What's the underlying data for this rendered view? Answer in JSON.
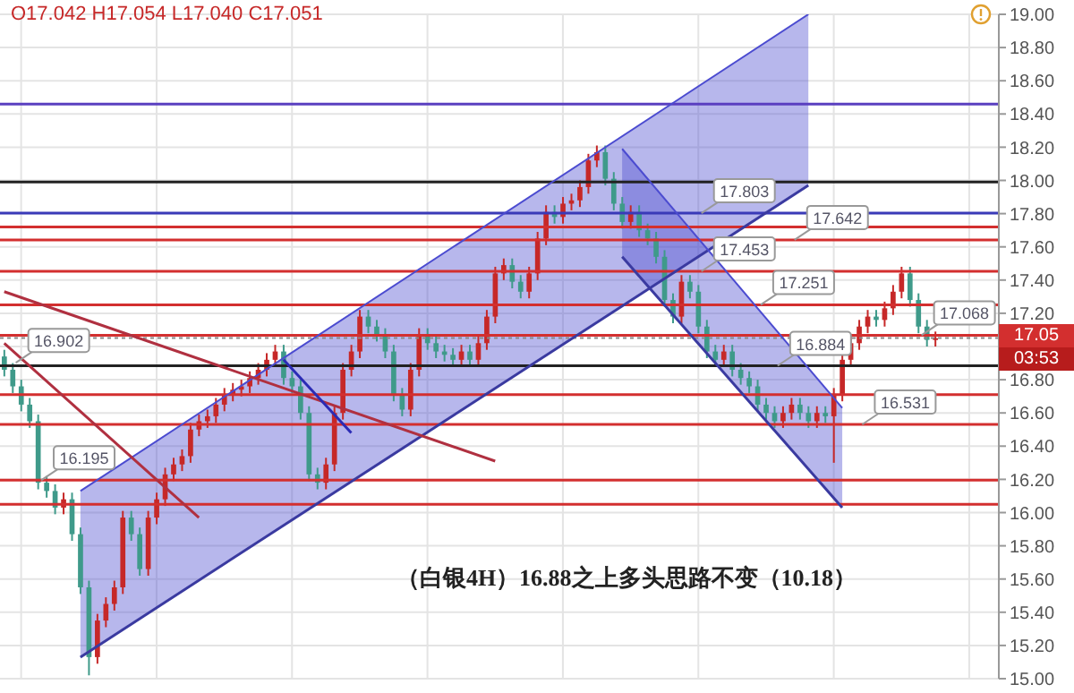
{
  "chart_data": {
    "type": "candlestick",
    "title": "（白银4H）16.88之上多头思路不变（10.18）",
    "categories": [
      null,
      null,
      null,
      null,
      null,
      null,
      null,
      null,
      null,
      null,
      null,
      null,
      null,
      null,
      null,
      null,
      null,
      null,
      null,
      null,
      null,
      null,
      null,
      null,
      null,
      null,
      null,
      null,
      null,
      null,
      null,
      null,
      null,
      null,
      null,
      null,
      null,
      null,
      null,
      null,
      null,
      null,
      null,
      null,
      null,
      null,
      null,
      null,
      null,
      null,
      null,
      null,
      null,
      null,
      null,
      null,
      null,
      null,
      null,
      null,
      null,
      null,
      null,
      null,
      null,
      null,
      null,
      null,
      null,
      null,
      null,
      null,
      null,
      null,
      null,
      null,
      null,
      null,
      null,
      null,
      null,
      null,
      null,
      null,
      null,
      null,
      null,
      null,
      null,
      null,
      null,
      null,
      null,
      null,
      null,
      null,
      null,
      null,
      null,
      null,
      null,
      null,
      null,
      null,
      null,
      null,
      null,
      null,
      null,
      null,
      null,
      null,
      null,
      null,
      null,
      null,
      null,
      null
    ],
    "series": [
      {
        "type": "line",
        "color": "#3a3aa0",
        "values": [
          null,
          null,
          null,
          null,
          null,
          null,
          null,
          null,
          null,
          15.13,
          null,
          null,
          null,
          null,
          null,
          null,
          null,
          null,
          null,
          null,
          null,
          null,
          null,
          null,
          null,
          null,
          null,
          null,
          null,
          null,
          null,
          null,
          null,
          null,
          null,
          null,
          null,
          null,
          null,
          null,
          null,
          null,
          null,
          null,
          null,
          null,
          null,
          null,
          null,
          null,
          null,
          null,
          null,
          null,
          null,
          null,
          null,
          null,
          null,
          null,
          null,
          null,
          null,
          null,
          null,
          null,
          null,
          null,
          null,
          null,
          null,
          null,
          null,
          null,
          null,
          null,
          null,
          null,
          null,
          null,
          null,
          null,
          null,
          null,
          null,
          null,
          null,
          null,
          null,
          null,
          null,
          null,
          null,
          null,
          null,
          17.97,
          null,
          null,
          null,
          null,
          null,
          null,
          null,
          null,
          null,
          null,
          null,
          null,
          null,
          null,
          null,
          null,
          null,
          null,
          null,
          null,
          null,
          null
        ]
      },
      {
        "type": "area",
        "color": "#4b4bd0",
        "values": [
          null,
          null,
          null,
          null,
          null,
          null,
          null,
          null,
          null,
          16.13,
          null,
          null,
          null,
          null,
          null,
          null,
          null,
          null,
          null,
          null,
          null,
          null,
          null,
          null,
          null,
          null,
          null,
          null,
          null,
          null,
          null,
          null,
          null,
          null,
          null,
          null,
          null,
          null,
          null,
          null,
          null,
          null,
          null,
          null,
          null,
          null,
          null,
          null,
          null,
          null,
          null,
          null,
          null,
          null,
          null,
          null,
          null,
          null,
          null,
          null,
          null,
          null,
          null,
          null,
          null,
          null,
          null,
          null,
          null,
          null,
          null,
          null,
          null,
          null,
          null,
          null,
          null,
          null,
          null,
          null,
          null,
          null,
          null,
          null,
          null,
          null,
          null,
          null,
          null,
          null,
          null,
          null,
          null,
          null,
          null,
          19.0,
          null,
          null,
          null,
          null,
          null,
          null,
          null,
          null,
          null,
          null,
          null,
          null,
          null,
          null,
          null,
          null,
          null,
          null,
          null,
          null,
          null,
          null
        ]
      },
      {
        "type": "line",
        "color": "#3a3aa0",
        "values": [
          null,
          null,
          null,
          null,
          null,
          null,
          null,
          null,
          null,
          null,
          null,
          null,
          null,
          null,
          null,
          null,
          null,
          null,
          null,
          null,
          null,
          null,
          null,
          null,
          null,
          null,
          null,
          null,
          null,
          null,
          null,
          null,
          null,
          null,
          null,
          null,
          null,
          null,
          null,
          null,
          null,
          null,
          null,
          null,
          null,
          null,
          null,
          null,
          null,
          null,
          null,
          null,
          null,
          null,
          null,
          null,
          null,
          null,
          null,
          null,
          null,
          null,
          null,
          null,
          null,
          null,
          null,
          null,
          null,
          null,
          null,
          null,
          null,
          17.54,
          null,
          null,
          null,
          null,
          null,
          null,
          null,
          null,
          null,
          null,
          null,
          null,
          null,
          null,
          null,
          null,
          null,
          null,
          null,
          null,
          null,
          null,
          null,
          null,
          null,
          16.03,
          null,
          null,
          null,
          null,
          null,
          null,
          null,
          null,
          null,
          null,
          null,
          null,
          null,
          null,
          null,
          null,
          null,
          null
        ]
      },
      {
        "type": "area",
        "color": "#4b4bd0",
        "values": [
          null,
          null,
          null,
          null,
          null,
          null,
          null,
          null,
          null,
          null,
          null,
          null,
          null,
          null,
          null,
          null,
          null,
          null,
          null,
          null,
          null,
          null,
          null,
          null,
          null,
          null,
          null,
          null,
          null,
          null,
          null,
          null,
          null,
          null,
          null,
          null,
          null,
          null,
          null,
          null,
          null,
          null,
          null,
          null,
          null,
          null,
          null,
          null,
          null,
          null,
          null,
          null,
          null,
          null,
          null,
          null,
          null,
          null,
          null,
          null,
          null,
          null,
          null,
          null,
          null,
          null,
          null,
          null,
          null,
          null,
          null,
          null,
          null,
          18.19,
          null,
          null,
          null,
          null,
          null,
          null,
          null,
          null,
          null,
          null,
          null,
          null,
          null,
          null,
          null,
          null,
          null,
          null,
          null,
          null,
          null,
          null,
          null,
          null,
          null,
          16.63,
          null,
          null,
          null,
          null,
          null,
          null,
          null,
          null,
          null,
          null,
          null,
          null,
          null,
          null,
          null,
          null,
          null,
          null
        ]
      },
      {
        "type": "line",
        "color": "#b03040",
        "values": [
          17.33,
          null,
          null,
          null,
          null,
          null,
          null,
          null,
          null,
          null,
          null,
          null,
          null,
          null,
          null,
          null,
          null,
          null,
          null,
          null,
          null,
          null,
          null,
          null,
          null,
          null,
          null,
          null,
          null,
          null,
          null,
          null,
          null,
          null,
          null,
          null,
          null,
          null,
          null,
          null,
          null,
          null,
          null,
          null,
          null,
          null,
          null,
          null,
          null,
          null,
          null,
          null,
          null,
          null,
          null,
          null,
          null,
          null,
          16.31,
          null,
          null,
          null,
          null,
          null,
          null,
          null,
          null,
          null,
          null,
          null,
          null,
          null,
          null,
          null,
          null,
          null,
          null,
          null,
          null,
          null,
          null,
          null,
          null,
          null,
          null,
          null,
          null,
          null,
          null,
          null,
          null,
          null,
          null,
          null,
          null,
          null,
          null,
          null,
          null,
          null,
          null,
          null,
          null,
          null,
          null,
          null,
          null,
          null,
          null,
          null,
          null,
          null,
          null,
          null,
          null,
          null,
          null,
          null
        ]
      },
      {
        "type": "line",
        "color": "#b03040",
        "values": [
          17.02,
          null,
          null,
          null,
          null,
          null,
          null,
          null,
          null,
          null,
          null,
          null,
          null,
          null,
          null,
          null,
          null,
          null,
          null,
          null,
          null,
          null,
          null,
          15.97,
          null,
          null,
          null,
          null,
          null,
          null,
          null,
          null,
          null,
          null,
          null,
          null,
          null,
          null,
          null,
          null,
          null,
          null,
          null,
          null,
          null,
          null,
          null,
          null,
          null,
          null,
          null,
          null,
          null,
          null,
          null,
          null,
          null,
          null,
          null,
          null,
          null,
          null,
          null,
          null,
          null,
          null,
          null,
          null,
          null,
          null,
          null,
          null,
          null,
          null,
          null,
          null,
          null,
          null,
          null,
          null,
          null,
          null,
          null,
          null,
          null,
          null,
          null,
          null,
          null,
          null,
          null,
          null,
          null,
          null,
          null,
          null,
          null,
          null,
          null,
          null,
          null,
          null,
          null,
          null,
          null,
          null,
          null,
          null,
          null,
          null,
          null,
          null,
          null,
          null,
          null,
          null,
          null,
          null
        ]
      },
      {
        "type": "line",
        "color": "#2b2bb5",
        "values": [
          null,
          null,
          null,
          null,
          null,
          null,
          null,
          null,
          null,
          null,
          null,
          null,
          null,
          null,
          null,
          null,
          null,
          null,
          null,
          null,
          null,
          null,
          null,
          null,
          null,
          null,
          null,
          null,
          null,
          null,
          null,
          null,
          null,
          16.92,
          null,
          null,
          null,
          null,
          null,
          null,
          null,
          16.48,
          null,
          null,
          null,
          null,
          null,
          null,
          null,
          null,
          null,
          null,
          null,
          null,
          null,
          null,
          null,
          null,
          null,
          null,
          null,
          null,
          null,
          null,
          null,
          null,
          null,
          null,
          null,
          null,
          null,
          null,
          null,
          null,
          null,
          null,
          null,
          null,
          null,
          null,
          null,
          null,
          null,
          null,
          null,
          null,
          null,
          null,
          null,
          null,
          null,
          null,
          null,
          null,
          null,
          null,
          null,
          null,
          null,
          null,
          null,
          null,
          null,
          null,
          null,
          null,
          null,
          null,
          null,
          null,
          null,
          null,
          null,
          null,
          null,
          null,
          null,
          null
        ]
      },
      {
        "ohlc": [
          [
            16.94,
            16.98,
            16.82,
            16.86
          ],
          [
            16.86,
            16.9,
            16.72,
            16.76
          ],
          [
            16.76,
            16.8,
            16.61,
            16.65
          ],
          [
            16.65,
            16.69,
            16.51,
            16.55
          ],
          [
            16.55,
            16.59,
            16.14,
            16.18
          ],
          [
            16.18,
            16.22,
            16.09,
            16.13
          ],
          [
            16.13,
            16.17,
            15.99,
            16.03
          ],
          [
            16.03,
            16.12,
            15.99,
            16.08
          ],
          [
            16.08,
            16.12,
            15.83,
            15.87
          ],
          [
            15.87,
            15.91,
            15.51,
            15.55
          ],
          [
            15.55,
            15.59,
            15.02,
            15.13
          ],
          [
            15.13,
            15.39,
            15.09,
            15.35
          ],
          [
            15.35,
            15.49,
            15.31,
            15.45
          ],
          [
            15.45,
            15.59,
            15.41,
            15.55
          ],
          [
            15.55,
            16.01,
            15.51,
            15.97
          ],
          [
            15.97,
            16.01,
            15.83,
            15.87
          ],
          [
            15.87,
            15.91,
            15.62,
            15.66
          ],
          [
            15.66,
            16.01,
            15.62,
            15.97
          ],
          [
            15.97,
            16.12,
            15.93,
            16.08
          ],
          [
            16.08,
            16.27,
            16.04,
            16.23
          ],
          [
            16.23,
            16.33,
            16.19,
            16.29
          ],
          [
            16.29,
            16.38,
            16.25,
            16.34
          ],
          [
            16.34,
            16.54,
            16.3,
            16.5
          ],
          [
            16.5,
            16.59,
            16.46,
            16.55
          ],
          [
            16.55,
            16.62,
            16.51,
            16.58
          ],
          [
            16.58,
            16.69,
            16.54,
            16.65
          ],
          [
            16.65,
            16.75,
            16.61,
            16.71
          ],
          [
            16.71,
            16.78,
            16.67,
            16.74
          ],
          [
            16.74,
            16.8,
            16.7,
            16.76
          ],
          [
            16.76,
            16.85,
            16.72,
            16.81
          ],
          [
            16.81,
            16.9,
            16.77,
            16.86
          ],
          [
            16.86,
            16.96,
            16.82,
            16.92
          ],
          [
            16.92,
            17.01,
            16.88,
            16.97
          ],
          [
            16.97,
            17.01,
            16.77,
            16.81
          ],
          [
            16.81,
            16.85,
            16.72,
            16.76
          ],
          [
            16.76,
            16.8,
            16.56,
            16.6
          ],
          [
            16.6,
            16.64,
            16.19,
            16.23
          ],
          [
            16.23,
            16.27,
            16.14,
            16.18
          ],
          [
            16.18,
            16.33,
            16.14,
            16.29
          ],
          [
            16.29,
            16.64,
            16.25,
            16.6
          ],
          [
            16.6,
            16.9,
            16.56,
            16.86
          ],
          [
            16.86,
            17.01,
            16.82,
            16.97
          ],
          [
            16.97,
            17.22,
            16.93,
            17.18
          ],
          [
            17.18,
            17.22,
            17.08,
            17.12
          ],
          [
            17.12,
            17.16,
            17.03,
            17.07
          ],
          [
            17.07,
            17.11,
            16.93,
            16.97
          ],
          [
            16.97,
            17.01,
            16.67,
            16.71
          ],
          [
            16.71,
            16.75,
            16.58,
            16.62
          ],
          [
            16.62,
            16.9,
            16.58,
            16.86
          ],
          [
            16.86,
            17.11,
            16.82,
            17.07
          ],
          [
            17.07,
            17.11,
            16.98,
            17.02
          ],
          [
            17.02,
            17.06,
            16.93,
            16.97
          ],
          [
            16.97,
            17.01,
            16.91,
            16.95
          ],
          [
            16.95,
            16.99,
            16.88,
            16.92
          ],
          [
            16.92,
            17.01,
            16.88,
            16.97
          ],
          [
            16.97,
            17.01,
            16.88,
            16.92
          ],
          [
            16.92,
            17.06,
            16.88,
            17.02
          ],
          [
            17.02,
            17.22,
            16.98,
            17.18
          ],
          [
            17.18,
            17.48,
            17.14,
            17.44
          ],
          [
            17.44,
            17.53,
            17.4,
            17.49
          ],
          [
            17.49,
            17.53,
            17.35,
            17.39
          ],
          [
            17.39,
            17.43,
            17.29,
            17.33
          ],
          [
            17.33,
            17.48,
            17.29,
            17.44
          ],
          [
            17.44,
            17.69,
            17.4,
            17.65
          ],
          [
            17.65,
            17.85,
            17.61,
            17.81
          ],
          [
            17.81,
            17.85,
            17.74,
            17.78
          ],
          [
            17.78,
            17.9,
            17.74,
            17.86
          ],
          [
            17.86,
            17.92,
            17.82,
            17.88
          ],
          [
            17.88,
            18.0,
            17.84,
            17.96
          ],
          [
            17.96,
            18.16,
            17.92,
            18.12
          ],
          [
            18.12,
            18.21,
            18.08,
            18.17
          ],
          [
            18.17,
            18.21,
            17.97,
            18.01
          ],
          [
            18.01,
            18.05,
            17.82,
            17.86
          ],
          [
            17.86,
            17.9,
            17.71,
            17.75
          ],
          [
            17.75,
            17.85,
            17.71,
            17.81
          ],
          [
            17.81,
            17.85,
            17.66,
            17.7
          ],
          [
            17.7,
            17.74,
            17.61,
            17.65
          ],
          [
            17.65,
            17.69,
            17.5,
            17.54
          ],
          [
            17.54,
            17.58,
            17.24,
            17.28
          ],
          [
            17.28,
            17.32,
            17.14,
            17.18
          ],
          [
            17.18,
            17.43,
            17.14,
            17.39
          ],
          [
            17.39,
            17.43,
            17.29,
            17.33
          ],
          [
            17.33,
            17.37,
            17.08,
            17.12
          ],
          [
            17.12,
            17.16,
            16.93,
            16.97
          ],
          [
            16.97,
            17.01,
            16.88,
            16.92
          ],
          [
            16.92,
            17.01,
            16.88,
            16.97
          ],
          [
            16.97,
            17.01,
            16.82,
            16.86
          ],
          [
            16.86,
            16.9,
            16.77,
            16.81
          ],
          [
            16.81,
            16.85,
            16.72,
            16.76
          ],
          [
            16.76,
            16.8,
            16.61,
            16.65
          ],
          [
            16.65,
            16.69,
            16.56,
            16.6
          ],
          [
            16.6,
            16.64,
            16.51,
            16.55
          ],
          [
            16.55,
            16.64,
            16.51,
            16.6
          ],
          [
            16.6,
            16.69,
            16.56,
            16.65
          ],
          [
            16.65,
            16.69,
            16.56,
            16.6
          ],
          [
            16.6,
            16.64,
            16.51,
            16.55
          ],
          [
            16.55,
            16.64,
            16.51,
            16.6
          ],
          [
            16.6,
            16.64,
            16.54,
            16.58
          ],
          [
            16.58,
            16.75,
            16.3,
            16.71
          ],
          [
            16.71,
            16.96,
            16.67,
            16.92
          ],
          [
            16.92,
            17.06,
            16.88,
            17.02
          ],
          [
            17.02,
            17.16,
            16.98,
            17.12
          ],
          [
            17.12,
            17.22,
            17.08,
            17.18
          ],
          [
            17.18,
            17.22,
            17.12,
            17.16
          ],
          [
            17.16,
            17.27,
            17.12,
            17.23
          ],
          [
            17.23,
            17.37,
            17.19,
            17.33
          ],
          [
            17.33,
            17.48,
            17.29,
            17.44
          ],
          [
            17.44,
            17.48,
            17.24,
            17.28
          ],
          [
            17.28,
            17.32,
            17.08,
            17.12
          ],
          [
            17.12,
            17.16,
            17.0,
            17.04
          ],
          [
            17.04,
            17.09,
            17.0,
            17.05
          ],
          null,
          null,
          null,
          null,
          null,
          null,
          null
        ],
        "colors": [
          "#3f9a8a",
          "#3f9a8a",
          "#3f9a8a",
          "#3f9a8a",
          "#3f9a8a",
          "#3f9a8a",
          "#3f9a8a",
          "#c62828",
          "#3f9a8a",
          "#3f9a8a",
          "#3f9a8a",
          "#c62828",
          "#c62828",
          "#c62828",
          "#c62828",
          "#3f9a8a",
          "#3f9a8a",
          "#c62828",
          "#c62828",
          "#c62828",
          "#c62828",
          "#c62828",
          "#c62828",
          "#c62828",
          "#c62828",
          "#c62828",
          "#c62828",
          "#c62828",
          "#c62828",
          "#c62828",
          "#c62828",
          "#c62828",
          "#c62828",
          "#3f9a8a",
          "#3f9a8a",
          "#3f9a8a",
          "#3f9a8a",
          "#3f9a8a",
          "#c62828",
          "#c62828",
          "#c62828",
          "#c62828",
          "#c62828",
          "#3f9a8a",
          "#3f9a8a",
          "#3f9a8a",
          "#3f9a8a",
          "#3f9a8a",
          "#c62828",
          "#c62828",
          "#3f9a8a",
          "#3f9a8a",
          "#3f9a8a",
          "#3f9a8a",
          "#c62828",
          "#3f9a8a",
          "#c62828",
          "#c62828",
          "#c62828",
          "#c62828",
          "#3f9a8a",
          "#3f9a8a",
          "#c62828",
          "#c62828",
          "#c62828",
          "#3f9a8a",
          "#c62828",
          "#c62828",
          "#c62828",
          "#c62828",
          "#c62828",
          "#3f9a8a",
          "#3f9a8a",
          "#3f9a8a",
          "#c62828",
          "#3f9a8a",
          "#3f9a8a",
          "#3f9a8a",
          "#3f9a8a",
          "#3f9a8a",
          "#c62828",
          "#3f9a8a",
          "#3f9a8a",
          "#3f9a8a",
          "#3f9a8a",
          "#c62828",
          "#3f9a8a",
          "#3f9a8a",
          "#3f9a8a",
          "#3f9a8a",
          "#3f9a8a",
          "#3f9a8a",
          "#c62828",
          "#c62828",
          "#3f9a8a",
          "#3f9a8a",
          "#c62828",
          "#3f9a8a",
          "#c62828",
          "#c62828",
          "#c62828",
          "#c62828",
          "#c62828",
          "#3f9a8a",
          "#c62828",
          "#c62828",
          "#c62828",
          "#3f9a8a",
          "#3f9a8a",
          "#3f9a8a",
          "#c62828",
          null,
          null,
          null,
          null,
          null,
          null,
          null
        ]
      }
    ],
    "ylim": [
      15,
      19
    ],
    "yticks": [
      {
        "value": 15,
        "label": "15.00"
      },
      {
        "value": 15.2,
        "label": "15.20"
      },
      {
        "value": 15.4,
        "label": "15.40"
      },
      {
        "value": 15.6,
        "label": "15.60"
      },
      {
        "value": 15.8,
        "label": "15.80"
      },
      {
        "value": 16,
        "label": "16.00"
      },
      {
        "value": 16.2,
        "label": "16.20"
      },
      {
        "value": 16.4,
        "label": "16.40"
      },
      {
        "value": 16.6,
        "label": "16.60"
      },
      {
        "value": 16.8,
        "label": "16.80"
      },
      {
        "value": 17,
        "label": null
      },
      {
        "value": 17.2,
        "label": "17.20"
      },
      {
        "value": 17.4,
        "label": "17.40"
      },
      {
        "value": 17.6,
        "label": "17.60"
      },
      {
        "value": 17.8,
        "label": "17.80"
      },
      {
        "value": 18,
        "label": "18.00"
      },
      {
        "value": 18.2,
        "label": "18.20"
      },
      {
        "value": 18.4,
        "label": "18.40"
      },
      {
        "value": 18.6,
        "label": "18.60"
      },
      {
        "value": 18.8,
        "label": "18.80"
      },
      {
        "value": 19,
        "label": "19.00"
      }
    ],
    "ref_lines": [
      {
        "axis": "y",
        "value": 18.46,
        "color": "#5a3fc0"
      },
      {
        "axis": "y",
        "value": 17.99,
        "color": "#222222"
      },
      {
        "axis": "y",
        "value": 17.803,
        "color": "#3a3ab8"
      },
      {
        "axis": "y",
        "value": 17.72,
        "color": "#d32f2f"
      },
      {
        "axis": "y",
        "value": 17.642,
        "color": "#d32f2f"
      },
      {
        "axis": "y",
        "value": 17.453,
        "color": "#d32f2f"
      },
      {
        "axis": "y",
        "value": 17.251,
        "color": "#d32f2f"
      },
      {
        "axis": "y",
        "value": 17.068,
        "color": "#d32f2f"
      },
      {
        "axis": "y",
        "value": 17.051,
        "color": "#888888",
        "line_style": "dotted"
      },
      {
        "axis": "y",
        "value": 16.884,
        "color": "#222222"
      },
      {
        "axis": "y",
        "value": 16.71,
        "color": "#d32f2f"
      },
      {
        "axis": "y",
        "value": 16.531,
        "color": "#d32f2f"
      },
      {
        "axis": "y",
        "value": 16.195,
        "color": "#d32f2f"
      },
      {
        "axis": "y",
        "value": 16.05,
        "color": "#d32f2f"
      }
    ],
    "annotations": [
      "O17.042 H17.054 L17.040 C17.051",
      {
        "text": "16.902",
        "y": 16.902
      },
      {
        "text": "16.195",
        "y": 16.195
      },
      {
        "text": "17.803",
        "y": 17.803
      },
      {
        "text": "17.453",
        "y": 17.453
      },
      {
        "text": "17.642",
        "y": 17.642
      },
      {
        "text": "17.251",
        "y": 17.251
      },
      {
        "text": "16.884",
        "y": 16.884
      },
      {
        "text": "16.531",
        "y": 16.531
      },
      {
        "text": "17.068",
        "y": 17.068
      },
      {
        "text": "17.05",
        "y": 17.051
      },
      "03:53"
    ],
    "grid": true,
    "tick_labels": "y"
  }
}
